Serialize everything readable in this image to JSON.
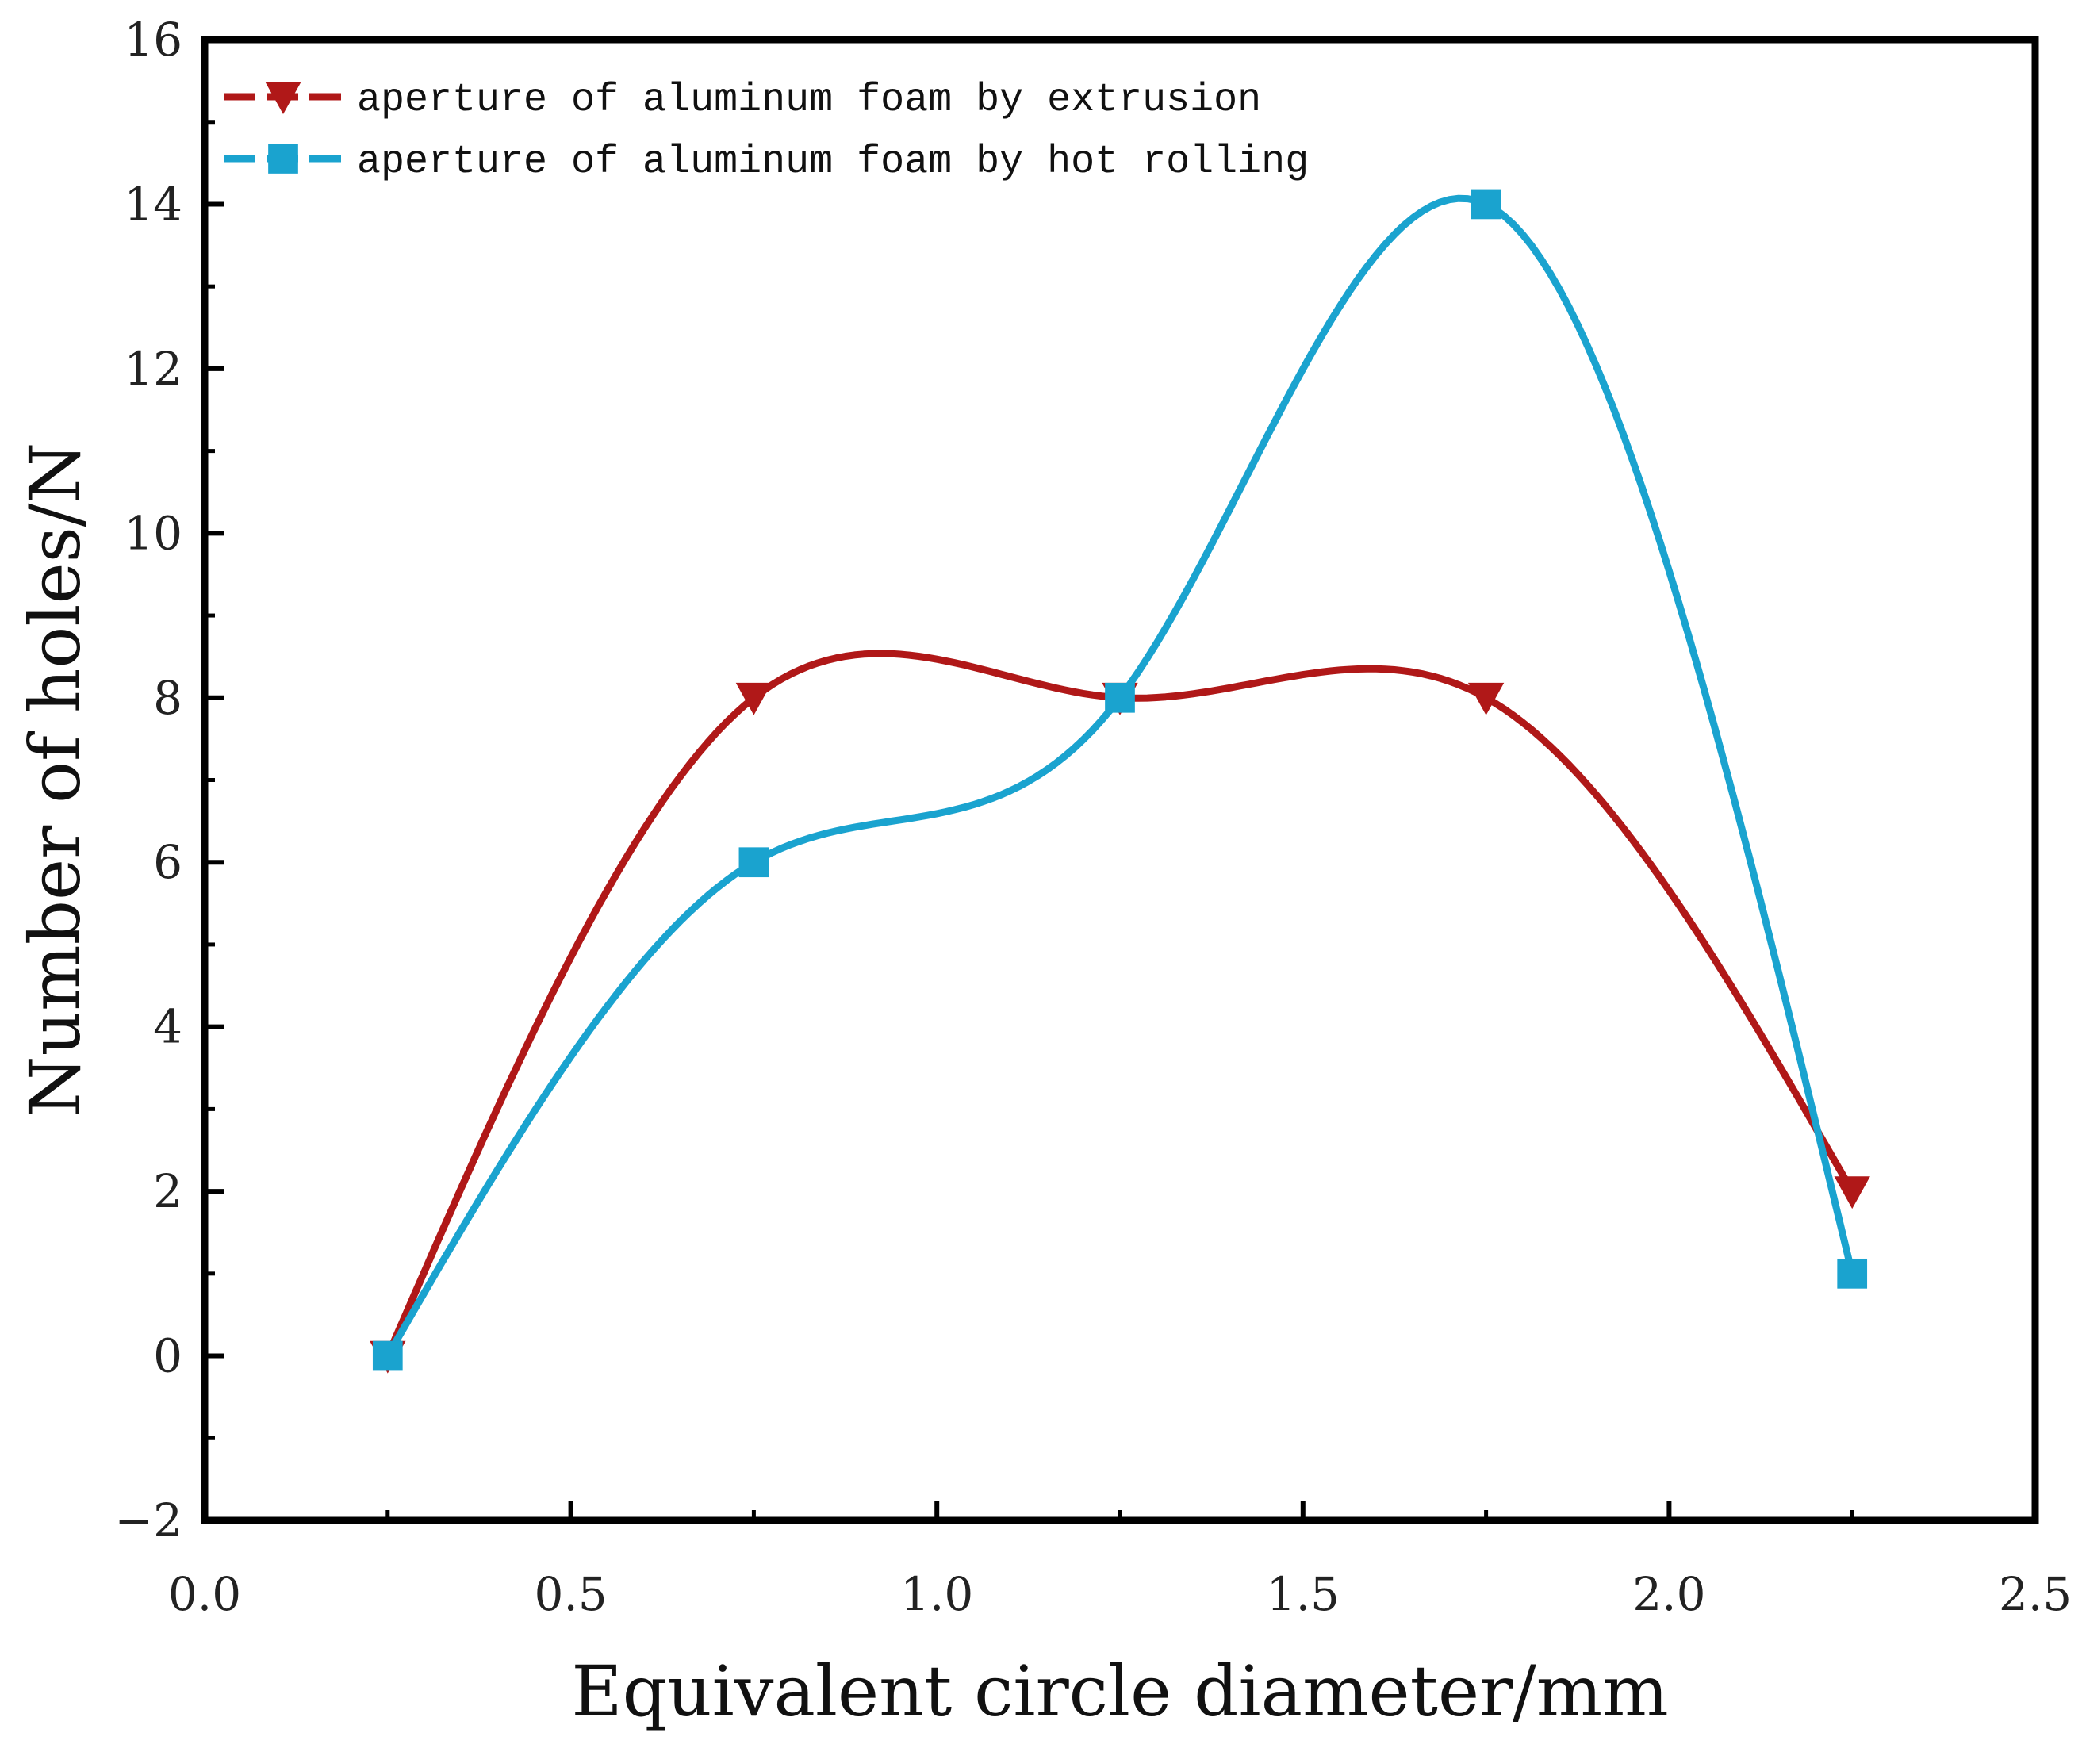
{
  "chart_data": {
    "type": "line",
    "title": "",
    "xlabel": "Equivalent circle diameter/mm",
    "ylabel": "Number of holes/N",
    "xlim": [
      0.0,
      2.5
    ],
    "ylim": [
      -2,
      16
    ],
    "xticks": [
      0.0,
      0.5,
      1.0,
      1.5,
      2.0,
      2.5
    ],
    "xtick_labels": [
      "0.0",
      "0.5",
      "1.0",
      "1.5",
      "2.0",
      "2.5"
    ],
    "yticks": [
      -2,
      0,
      2,
      4,
      6,
      8,
      10,
      12,
      14,
      16
    ],
    "ytick_labels": [
      "−2",
      "0",
      "2",
      "4",
      "6",
      "8",
      "10",
      "12",
      "14",
      "16"
    ],
    "grid": false,
    "legend_position": "top-left",
    "smoothed": true,
    "series": [
      {
        "name": "aperture of aluminum foam by extrusion",
        "color": "#b01818",
        "marker": "triangle-down",
        "x": [
          0.25,
          0.75,
          1.25,
          1.75,
          2.25
        ],
        "y": [
          0,
          8,
          8,
          8,
          2
        ]
      },
      {
        "name": "aperture of aluminum foam by hot rolling",
        "color": "#1aa3cf",
        "marker": "square",
        "x": [
          0.25,
          0.75,
          1.25,
          1.75,
          2.25
        ],
        "y": [
          0,
          6,
          8,
          14,
          1
        ]
      }
    ]
  }
}
